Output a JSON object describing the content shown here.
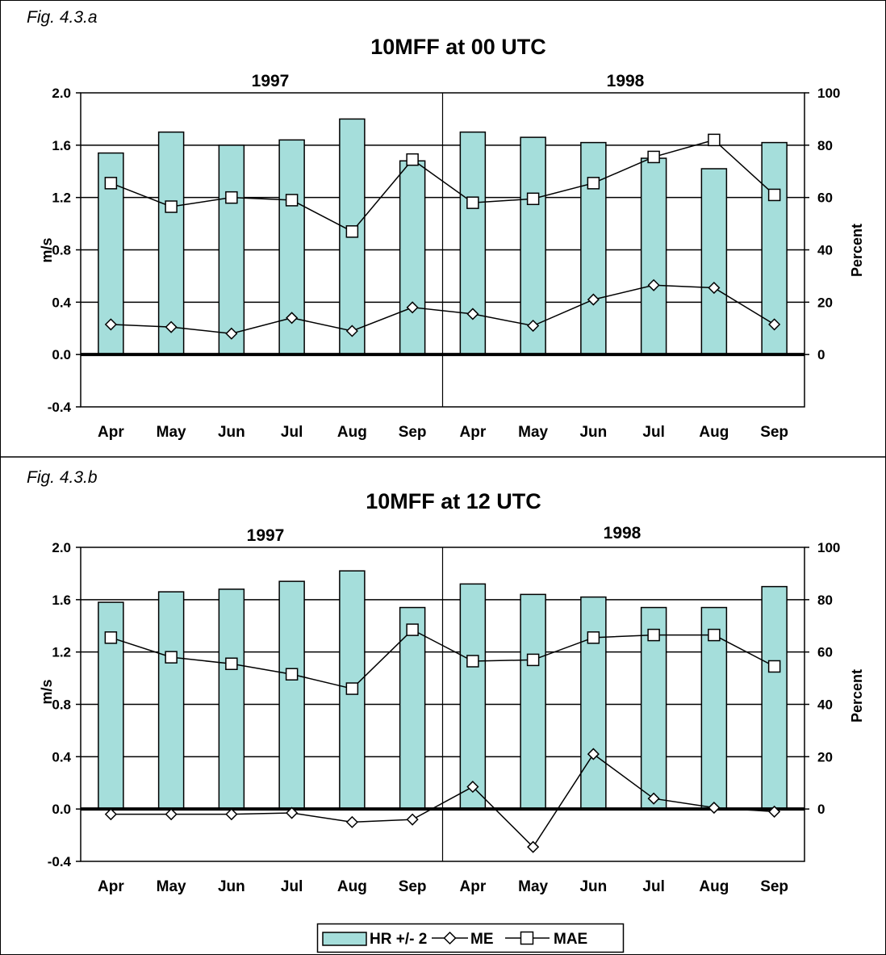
{
  "chart_data": [
    {
      "type": "bar",
      "fig_label": "Fig. 4.3.a",
      "title": "10MFF at 00 UTC",
      "groups": [
        "1997",
        "1998"
      ],
      "categories": [
        "Apr",
        "May",
        "Jun",
        "Jul",
        "Aug",
        "Sep",
        "Apr",
        "May",
        "Jun",
        "Jul",
        "Aug",
        "Sep"
      ],
      "ylabel": "m/s",
      "y2label": "Percent",
      "ylim": [
        -0.4,
        2.0
      ],
      "yticks": [
        "2.0",
        "1.6",
        "1.2",
        "0.8",
        "0.4",
        "0.0",
        "-0.4"
      ],
      "y2lim": [
        -20,
        100
      ],
      "y2ticks": [
        "100",
        "80",
        "60",
        "40",
        "20",
        "0"
      ],
      "grid": true,
      "series": [
        {
          "name": "HR +/- 2",
          "kind": "bar",
          "axis": "right",
          "values": [
            77,
            85,
            80,
            82,
            90,
            74,
            85,
            83,
            81,
            75,
            71,
            81
          ]
        },
        {
          "name": "ME",
          "kind": "line",
          "marker": "diamond",
          "axis": "left",
          "values": [
            0.23,
            0.21,
            0.16,
            0.28,
            0.18,
            0.36,
            0.31,
            0.22,
            0.42,
            0.53,
            0.51,
            0.23
          ]
        },
        {
          "name": "MAE",
          "kind": "line",
          "marker": "square",
          "axis": "left",
          "values": [
            1.31,
            1.13,
            1.2,
            1.18,
            0.94,
            1.49,
            1.16,
            1.19,
            1.31,
            1.51,
            1.64,
            1.22
          ]
        }
      ]
    },
    {
      "type": "bar",
      "fig_label": "Fig. 4.3.b",
      "title": "10MFF at 12 UTC",
      "groups": [
        "1997",
        "1998"
      ],
      "categories": [
        "Apr",
        "May",
        "Jun",
        "Jul",
        "Aug",
        "Sep",
        "Apr",
        "May",
        "Jun",
        "Jul",
        "Aug",
        "Sep"
      ],
      "ylabel": "m/s",
      "y2label": "Percent",
      "ylim": [
        -0.4,
        2.0
      ],
      "yticks": [
        "2.0",
        "1.6",
        "1.2",
        "0.8",
        "0.4",
        "0.0",
        "-0.4"
      ],
      "y2lim": [
        -20,
        100
      ],
      "y2ticks": [
        "100",
        "80",
        "60",
        "40",
        "20",
        "0"
      ],
      "grid": true,
      "series": [
        {
          "name": "HR +/- 2",
          "kind": "bar",
          "axis": "right",
          "values": [
            79,
            83,
            84,
            87,
            91,
            77,
            86,
            82,
            81,
            77,
            77,
            85
          ]
        },
        {
          "name": "ME",
          "kind": "line",
          "marker": "diamond",
          "axis": "left",
          "values": [
            -0.04,
            -0.04,
            -0.04,
            -0.03,
            -0.1,
            -0.08,
            0.17,
            -0.29,
            0.42,
            0.08,
            0.01,
            -0.02
          ]
        },
        {
          "name": "MAE",
          "kind": "line",
          "marker": "square",
          "axis": "left",
          "values": [
            1.31,
            1.16,
            1.11,
            1.03,
            0.92,
            1.37,
            1.13,
            1.14,
            1.31,
            1.33,
            1.33,
            1.09
          ]
        }
      ]
    }
  ],
  "legend": {
    "items": [
      {
        "label": "HR +/- 2",
        "kind": "bar"
      },
      {
        "label": "ME",
        "kind": "line",
        "marker": "diamond"
      },
      {
        "label": "MAE",
        "kind": "line",
        "marker": "square"
      }
    ]
  },
  "colors": {
    "bar_fill": "#a5dedb",
    "line": "#000000",
    "marker_fill": "#ffffff",
    "grid": "#000000"
  }
}
